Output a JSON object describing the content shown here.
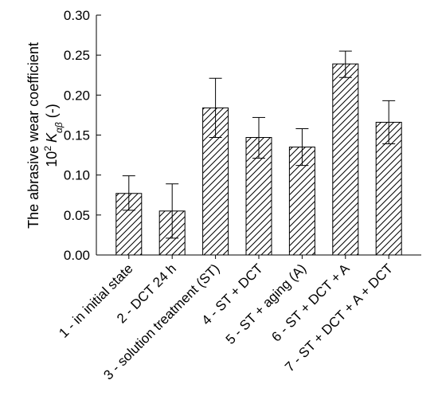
{
  "chart_data": {
    "type": "bar",
    "categories": [
      "1 - in initial state",
      "2 - DCT 24 h",
      "3 - solution treatment (ST)",
      "4 - ST + DCT",
      "5 - ST + aging (A)",
      "6 - ST + DCT + A",
      "7 - ST + DCT + A + DCT"
    ],
    "values": [
      0.077,
      0.055,
      0.184,
      0.147,
      0.135,
      0.239,
      0.166
    ],
    "error_bars": [
      {
        "low": 0.056,
        "high": 0.099
      },
      {
        "low": 0.021,
        "high": 0.089
      },
      {
        "low": 0.147,
        "high": 0.221
      },
      {
        "low": 0.121,
        "high": 0.172
      },
      {
        "low": 0.112,
        "high": 0.158
      },
      {
        "low": 0.222,
        "high": 0.255
      },
      {
        "low": 0.139,
        "high": 0.193
      }
    ],
    "ylabel_line1": "The abrasive wear coefficient",
    "ylabel_line2_prefix": "10",
    "ylabel_line2_exp": "2",
    "ylabel_line2_symbol": "K",
    "ylabel_line2_subscript": "αβ",
    "ylabel_line2_suffix": " (-)",
    "ylim": [
      0,
      0.3
    ],
    "yticks": [
      "0.00",
      "0.05",
      "0.10",
      "0.15",
      "0.20",
      "0.25",
      "0.30"
    ],
    "grid": false,
    "bar_fill": "hatched-diagonal",
    "bar_color": "#000000"
  }
}
